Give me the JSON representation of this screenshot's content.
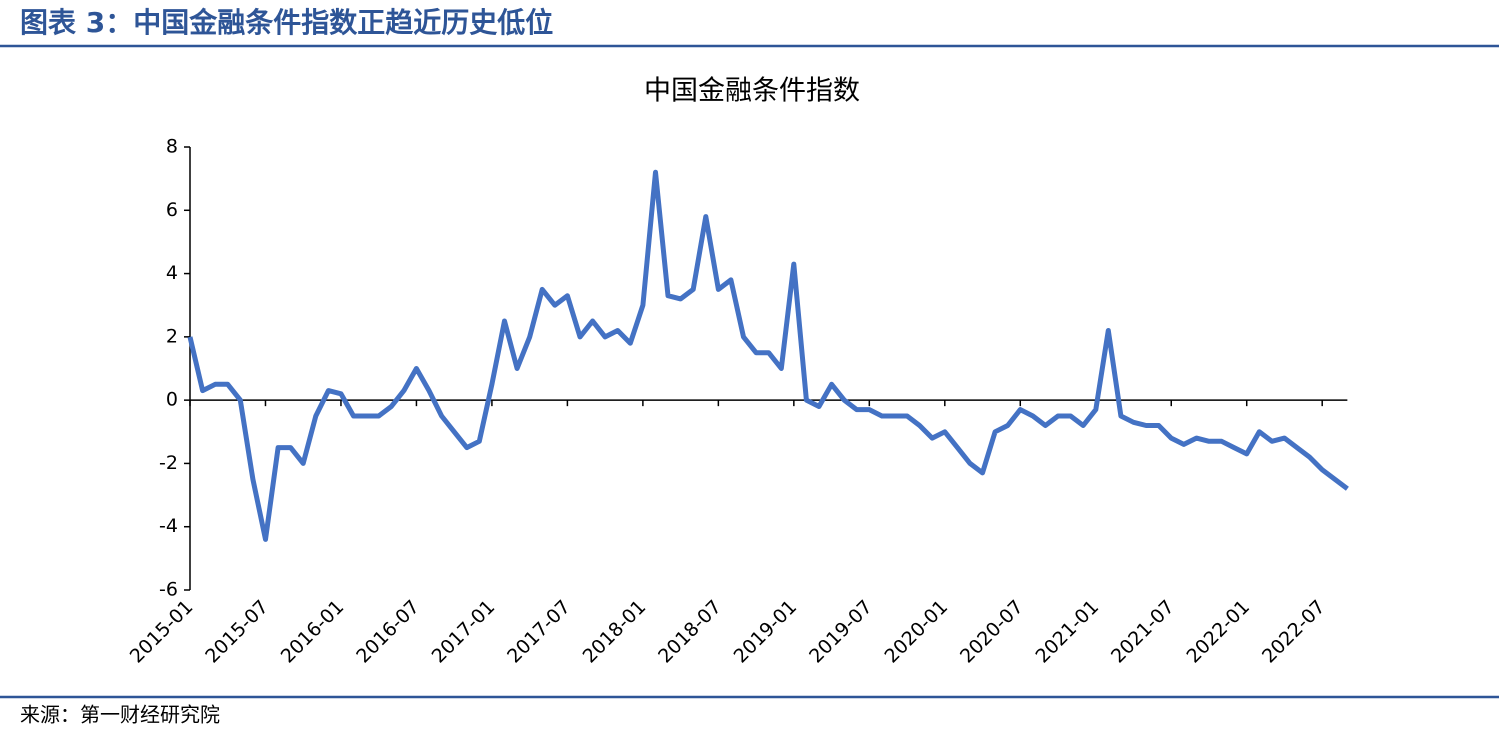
{
  "header": {
    "title": "图表 3：中国金融条件指数正趋近历史低位"
  },
  "chart_data": {
    "type": "line",
    "title": "中国金融条件指数",
    "x": [
      "2015-01",
      "2015-02",
      "2015-03",
      "2015-04",
      "2015-05",
      "2015-06",
      "2015-07",
      "2015-08",
      "2015-09",
      "2015-10",
      "2015-11",
      "2015-12",
      "2016-01",
      "2016-02",
      "2016-03",
      "2016-04",
      "2016-05",
      "2016-06",
      "2016-07",
      "2016-08",
      "2016-09",
      "2016-10",
      "2016-11",
      "2016-12",
      "2017-01",
      "2017-02",
      "2017-03",
      "2017-04",
      "2017-05",
      "2017-06",
      "2017-07",
      "2017-08",
      "2017-09",
      "2017-10",
      "2017-11",
      "2017-12",
      "2018-01",
      "2018-02",
      "2018-03",
      "2018-04",
      "2018-05",
      "2018-06",
      "2018-07",
      "2018-08",
      "2018-09",
      "2018-10",
      "2018-11",
      "2018-12",
      "2019-01",
      "2019-02",
      "2019-03",
      "2019-04",
      "2019-05",
      "2019-06",
      "2019-07",
      "2019-08",
      "2019-09",
      "2019-10",
      "2019-11",
      "2019-12",
      "2020-01",
      "2020-02",
      "2020-03",
      "2020-04",
      "2020-05",
      "2020-06",
      "2020-07",
      "2020-08",
      "2020-09",
      "2020-10",
      "2020-11",
      "2020-12",
      "2021-01",
      "2021-02",
      "2021-03",
      "2021-04",
      "2021-05",
      "2021-06",
      "2021-07",
      "2021-08",
      "2021-09",
      "2021-10",
      "2021-11",
      "2021-12",
      "2022-01",
      "2022-02",
      "2022-03",
      "2022-04",
      "2022-05",
      "2022-06",
      "2022-07",
      "2022-08",
      "2022-09"
    ],
    "series": [
      {
        "color": "#4472c4",
        "values": [
          2.0,
          0.3,
          0.5,
          0.5,
          0.0,
          -2.5,
          -4.4,
          -1.5,
          -1.5,
          -2.0,
          -0.5,
          0.3,
          0.2,
          -0.5,
          -0.5,
          -0.5,
          -0.2,
          0.3,
          1.0,
          0.3,
          -0.5,
          -1.0,
          -1.5,
          -1.3,
          0.5,
          2.5,
          1.0,
          2.0,
          3.5,
          3.0,
          3.3,
          2.0,
          2.5,
          2.0,
          2.2,
          1.8,
          3.0,
          7.2,
          3.3,
          3.2,
          3.5,
          5.8,
          3.5,
          3.8,
          2.0,
          1.5,
          1.5,
          1.0,
          4.3,
          0.0,
          -0.2,
          0.5,
          0.0,
          -0.3,
          -0.3,
          -0.5,
          -0.5,
          -0.5,
          -0.8,
          -1.2,
          -1.0,
          -1.5,
          -2.0,
          -2.3,
          -1.0,
          -0.8,
          -0.3,
          -0.5,
          -0.8,
          -0.5,
          -0.5,
          -0.8,
          -0.3,
          2.2,
          -0.5,
          -0.7,
          -0.8,
          -0.8,
          -1.2,
          -1.4,
          -1.2,
          -1.3,
          -1.3,
          -1.5,
          -1.7,
          -1.0,
          -1.3,
          -1.2,
          -1.5,
          -1.8,
          -2.2,
          -2.5,
          -2.8
        ]
      }
    ],
    "ylim": [
      -6,
      8
    ],
    "yticks": [
      -6,
      -4,
      -2,
      0,
      2,
      4,
      6,
      8
    ],
    "xtick_every": 6
  },
  "footer": {
    "source": "来源：第一财经研究院"
  }
}
